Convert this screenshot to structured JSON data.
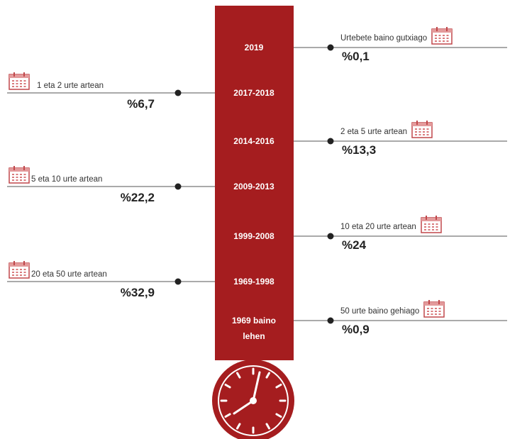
{
  "items": [
    {
      "period": "2019",
      "label": "Urtebete baino gutxiago",
      "value": "%0,1"
    },
    {
      "period": "2017-2018",
      "label": "1 eta 2 urte artean",
      "value": "%6,7"
    },
    {
      "period": "2014-2016",
      "label": "2 eta 5 urte artean",
      "value": "%13,3"
    },
    {
      "period": "2009-2013",
      "label": "5 eta 10 urte artean",
      "value": "%22,2"
    },
    {
      "period": "1999-2008",
      "label": "10 eta 20 urte artean",
      "value": "%24"
    },
    {
      "period": "1969-1998",
      "label": "20 eta 50 urte artean",
      "value": "%32,9"
    },
    {
      "period": "1969 baino lehen",
      "label": "50 urte baino gehiago",
      "value": "%0,9"
    }
  ]
}
